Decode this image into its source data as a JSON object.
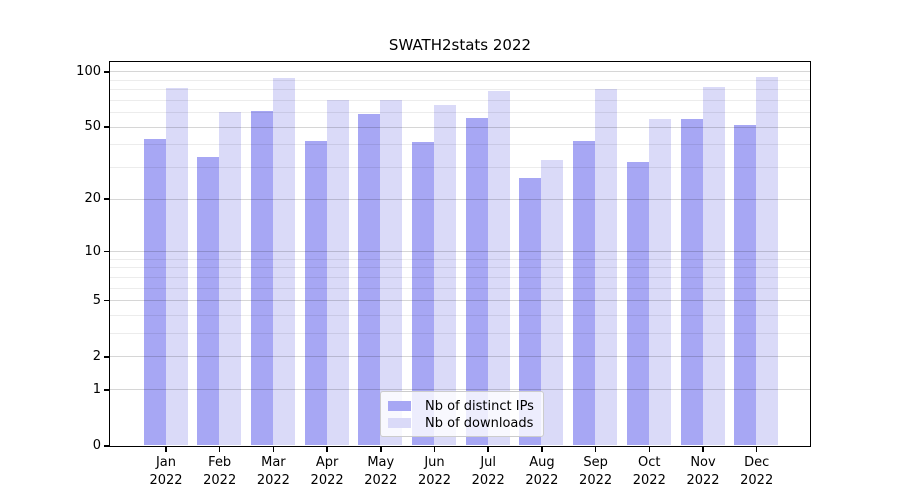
{
  "chart_data": {
    "type": "bar",
    "title": "SWATH2stats 2022",
    "categories": [
      "Jan",
      "Feb",
      "Mar",
      "Apr",
      "May",
      "Jun",
      "Jul",
      "Aug",
      "Sep",
      "Oct",
      "Nov",
      "Dec"
    ],
    "year_label": "2022",
    "series": [
      {
        "name": "Nb of distinct IPs",
        "key": "distinct-ips",
        "color": "#a7a7f4",
        "values": [
          43,
          34,
          61,
          42,
          59,
          41,
          56,
          26,
          42,
          32,
          55,
          51
        ]
      },
      {
        "name": "Nb of downloads",
        "key": "downloads",
        "color": "#dadaf8",
        "values": [
          81,
          60,
          92,
          70,
          70,
          66,
          78,
          33,
          80,
          55,
          82,
          93
        ]
      }
    ],
    "yscale": "log1p",
    "ylim": [
      0,
      113
    ],
    "yticks": [
      0,
      1,
      2,
      5,
      10,
      20,
      50,
      100
    ],
    "yticks_minor": [
      3,
      4,
      6,
      7,
      8,
      9,
      30,
      40,
      60,
      70,
      80,
      90
    ],
    "xlabel": "",
    "ylabel": "",
    "grid": true,
    "legend_position": "lower center"
  },
  "colors": {
    "background": "#ffffff",
    "spine": "#000000",
    "grid_major": "rgba(0,0,0,0.16)",
    "grid_minor": "rgba(0,0,0,0.075)"
  }
}
